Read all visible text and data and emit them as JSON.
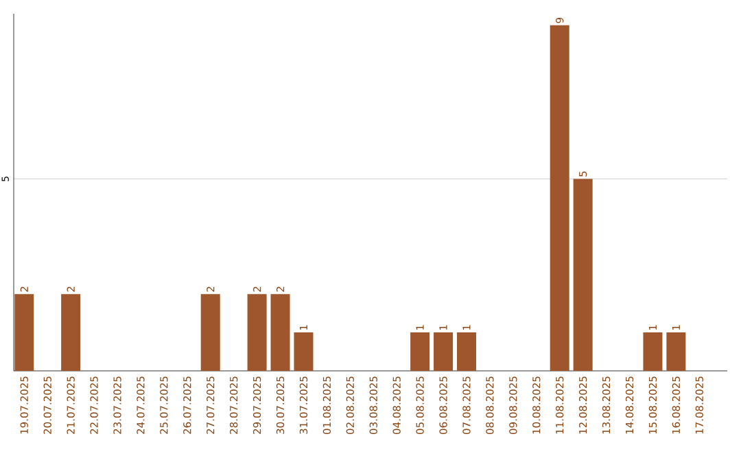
{
  "chart_data": {
    "type": "bar",
    "categories": [
      "19.07.2025",
      "20.07.2025",
      "21.07.2025",
      "22.07.2025",
      "23.07.2025",
      "24.07.2025",
      "25.07.2025",
      "26.07.2025",
      "27.07.2025",
      "28.07.2025",
      "29.07.2025",
      "30.07.2025",
      "31.07.2025",
      "01.08.2025",
      "02.08.2025",
      "03.08.2025",
      "04.08.2025",
      "05.08.2025",
      "06.08.2025",
      "07.08.2025",
      "08.08.2025",
      "09.08.2025",
      "10.08.2025",
      "11.08.2025",
      "12.08.2025",
      "13.08.2025",
      "14.08.2025",
      "15.08.2025",
      "16.08.2025",
      "17.08.2025"
    ],
    "values": [
      2,
      0,
      2,
      0,
      0,
      0,
      0,
      0,
      2,
      0,
      2,
      2,
      1,
      0,
      0,
      0,
      0,
      1,
      1,
      1,
      0,
      0,
      0,
      9,
      5,
      0,
      0,
      1,
      1,
      0
    ],
    "value_labels": [
      "2",
      null,
      "2",
      null,
      null,
      null,
      null,
      null,
      "2",
      null,
      "2",
      "2",
      "1",
      null,
      null,
      null,
      null,
      "1",
      "1",
      "1",
      null,
      null,
      null,
      "9",
      "5",
      null,
      null,
      "1",
      "1",
      null
    ],
    "color": "#a0562c",
    "ylim": [
      0,
      9.3
    ],
    "yticks": [
      5
    ],
    "grid": "y"
  }
}
